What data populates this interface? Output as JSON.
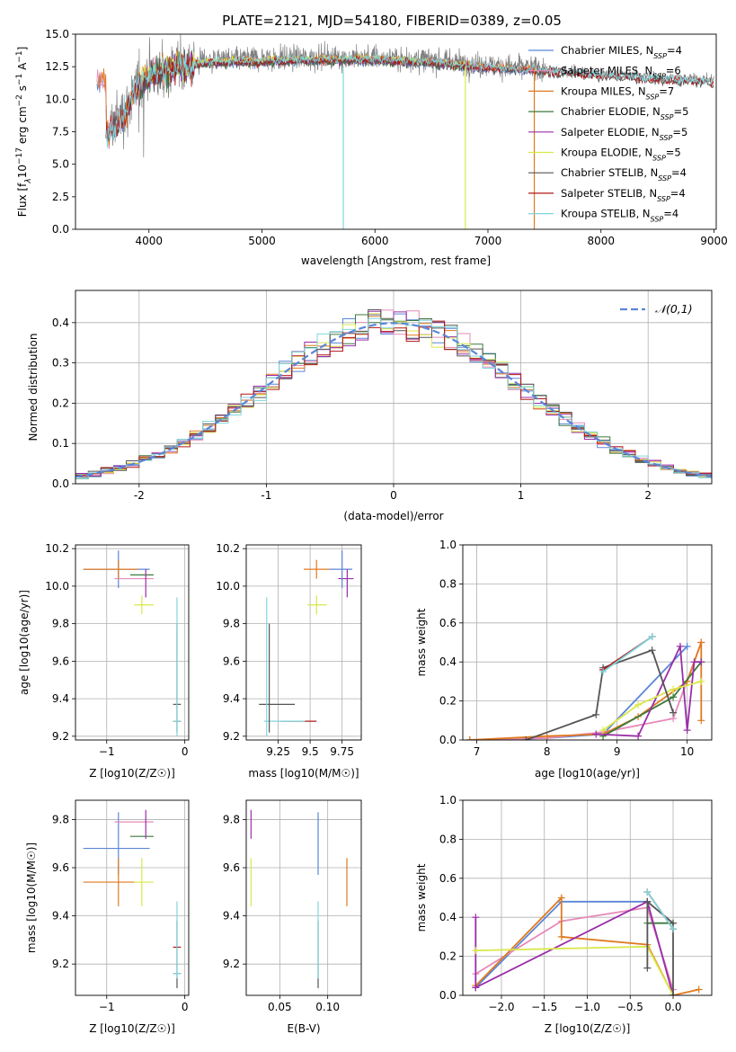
{
  "figure": {
    "title": "PLATE=2121, MJD=54180, FIBERID=0389, z=0.05"
  },
  "colors": {
    "Chabrier MILES": "#5b86d6",
    "Salpeter MILES": "#e68ab8",
    "Kroupa MILES": "#e07a20",
    "Chabrier ELODIE": "#3c7a3c",
    "Salpeter ELODIE": "#9a2ea8",
    "Kroupa ELODIE": "#d9e84a",
    "Chabrier STELIB": "#555555",
    "Salpeter STELIB": "#b01818",
    "Kroupa STELIB": "#7fd6dc"
  },
  "chart_data": [
    {
      "id": "spectrum",
      "type": "line",
      "xlabel": "wavelength [Angstrom, rest frame]",
      "ylabel_parts": [
        "Flux [f",
        "λ",
        "10",
        "−17",
        " erg cm",
        "−2",
        " s",
        "−1",
        " A",
        "−1",
        "]"
      ],
      "xlim": [
        3350,
        9020
      ],
      "ylim": [
        0,
        15
      ],
      "xticks": [
        4000,
        5000,
        6000,
        7000,
        8000,
        9000
      ],
      "yticks": [
        0.0,
        2.5,
        5.0,
        7.5,
        10.0,
        12.5,
        15.0
      ],
      "ytick_labels": [
        "0.0",
        "2.5",
        "5.0",
        "7.5",
        "10.0",
        "12.5",
        "15.0"
      ],
      "data_range": [
        3620,
        9000
      ],
      "data_flux_shape": [
        [
          3620,
          7.5
        ],
        [
          3700,
          8.2
        ],
        [
          3800,
          9.2
        ],
        [
          3900,
          11.2
        ],
        [
          4000,
          12.0
        ],
        [
          4200,
          12.5
        ],
        [
          4500,
          13.0
        ],
        [
          5000,
          13.1
        ],
        [
          5500,
          13.2
        ],
        [
          6000,
          13.2
        ],
        [
          6500,
          13.0
        ],
        [
          7000,
          12.6
        ],
        [
          7400,
          12.4
        ],
        [
          8000,
          12.0
        ],
        [
          8500,
          11.7
        ],
        [
          9000,
          11.5
        ]
      ],
      "legend": [
        {
          "imf": "Chabrier",
          "lib": "MILES",
          "n": "4"
        },
        {
          "imf": "Salpeter",
          "lib": "MILES",
          "n": "6"
        },
        {
          "imf": "Kroupa",
          "lib": "MILES",
          "n": "7"
        },
        {
          "imf": "Chabrier",
          "lib": "ELODIE",
          "n": "5"
        },
        {
          "imf": "Salpeter",
          "lib": "ELODIE",
          "n": "5"
        },
        {
          "imf": "Kroupa",
          "lib": "ELODIE",
          "n": "5"
        },
        {
          "imf": "Chabrier",
          "lib": "STELIB",
          "n": "4"
        },
        {
          "imf": "Salpeter",
          "lib": "STELIB",
          "n": "4"
        },
        {
          "imf": "Kroupa",
          "lib": "STELIB",
          "n": "4"
        }
      ],
      "legend_subscript": "SSP",
      "legend_placement": "upper-right",
      "model_ranges": {
        "MILES": [
          3540,
          7410
        ],
        "ELODIE": [
          3900,
          6800
        ],
        "STELIB": [
          3620,
          9000
        ]
      },
      "drops": [
        {
          "x": 5720,
          "series": "Kroupa STELIB"
        },
        {
          "x": 6800,
          "series": "Kroupa ELODIE"
        },
        {
          "x": 7410,
          "series": "Kroupa MILES"
        }
      ]
    },
    {
      "id": "residuals",
      "type": "histogram",
      "xlabel": "(data-model)/error",
      "ylabel": "Normed distribution",
      "xlim": [
        -2.5,
        2.5
      ],
      "ylim": [
        0,
        0.48
      ],
      "xticks": [
        -2,
        -1,
        0,
        1,
        2
      ],
      "yticks": [
        0.0,
        0.1,
        0.2,
        0.3,
        0.4
      ],
      "ytick_labels": [
        "0.0",
        "0.1",
        "0.2",
        "0.3",
        "0.4"
      ],
      "bin_width": 0.1,
      "legend": {
        "label": "𝒩(0,1)",
        "style": "dashed",
        "placement": "upper-right"
      },
      "grid": true
    },
    {
      "id": "age-vs-Z",
      "type": "errorbar",
      "xlabel": "Z [log10(Z/Z☉)]",
      "ylabel": "age  [log10(age/yr)]",
      "xlim": [
        -1.4,
        0.05
      ],
      "ylim": [
        9.18,
        10.22
      ],
      "xticks": [
        -1,
        0
      ],
      "xtick_labels": [
        "−1",
        "0"
      ],
      "yticks": [
        9.2,
        9.4,
        9.6,
        9.8,
        10.0,
        10.2
      ],
      "grid": true
    },
    {
      "id": "age-vs-mass",
      "type": "errorbar",
      "xlabel": "mass [log10(M/M☉)]",
      "xlim": [
        9.0,
        9.9
      ],
      "ylim": [
        9.18,
        10.22
      ],
      "xticks": [
        9.25,
        9.5,
        9.75
      ],
      "yticks": [
        9.2,
        9.4,
        9.6,
        9.8,
        10.0,
        10.2
      ],
      "grid": true
    },
    {
      "id": "weight-vs-age",
      "type": "line",
      "xlabel": "age  [log10(age/yr)]",
      "ylabel": "mass weight",
      "xlim": [
        6.8,
        10.35
      ],
      "ylim": [
        0,
        1.0
      ],
      "xticks": [
        7,
        8,
        9,
        10
      ],
      "yticks": [
        0.0,
        0.2,
        0.4,
        0.6,
        0.8,
        1.0
      ],
      "grid": true,
      "series": [
        {
          "name": "Chabrier MILES",
          "x": [
            6.9,
            8.0,
            8.8,
            10.0
          ],
          "y": [
            0.0,
            0.01,
            0.03,
            0.48
          ]
        },
        {
          "name": "Salpeter MILES",
          "x": [
            6.9,
            8.0,
            8.8,
            9.8,
            10.2
          ],
          "y": [
            0.0,
            0.01,
            0.04,
            0.11,
            0.5
          ]
        },
        {
          "name": "Kroupa MILES",
          "x": [
            6.9,
            8.0,
            8.8,
            9.3,
            10.0,
            10.2,
            10.2
          ],
          "y": [
            0.0,
            0.02,
            0.03,
            0.12,
            0.3,
            0.5,
            0.1
          ]
        },
        {
          "name": "Chabrier ELODIE",
          "x": [
            8.8,
            9.8,
            10.2
          ],
          "y": [
            0.02,
            0.22,
            0.4
          ]
        },
        {
          "name": "Salpeter ELODIE",
          "x": [
            8.7,
            9.3,
            9.9,
            10.0,
            10.1,
            10.2
          ],
          "y": [
            0.03,
            0.02,
            0.48,
            0.05,
            0.4,
            0.4
          ]
        },
        {
          "name": "Kroupa ELODIE",
          "x": [
            8.8,
            9.3,
            9.8,
            10.2
          ],
          "y": [
            0.05,
            0.18,
            0.26,
            0.3
          ]
        },
        {
          "name": "Chabrier STELIB",
          "x": [
            7.7,
            8.7,
            8.8,
            9.5,
            9.8
          ],
          "y": [
            0.0,
            0.13,
            0.37,
            0.46,
            0.14
          ]
        },
        {
          "name": "Salpeter STELIB",
          "x": [
            8.8,
            9.5
          ],
          "y": [
            0.36,
            0.53
          ]
        },
        {
          "name": "Kroupa STELIB",
          "x": [
            8.8,
            9.5
          ],
          "y": [
            0.35,
            0.53
          ]
        }
      ]
    },
    {
      "id": "mass-vs-Z",
      "type": "errorbar",
      "xlabel": "Z [log10(Z/Z☉)]",
      "ylabel": "mass [log10(M/M☉)]",
      "xlim": [
        -1.4,
        0.05
      ],
      "ylim": [
        9.07,
        9.88
      ],
      "xticks": [
        -1,
        0
      ],
      "xtick_labels": [
        "−1",
        "0"
      ],
      "yticks": [
        9.2,
        9.4,
        9.6,
        9.8
      ],
      "grid": true
    },
    {
      "id": "mass-vs-ebv",
      "type": "errorbar",
      "xlabel": "E(B-V)",
      "xlim": [
        0.015,
        0.135
      ],
      "ylim": [
        9.07,
        9.88
      ],
      "xticks": [
        0.05,
        0.1
      ],
      "xtick_labels": [
        "0.05",
        "0.10"
      ],
      "yticks": [
        9.2,
        9.4,
        9.6,
        9.8
      ],
      "grid": true
    },
    {
      "id": "weight-vs-Z",
      "type": "line",
      "xlabel": "Z [log10(Z/Z☉)]",
      "ylabel": "mass weight",
      "xlim": [
        -2.45,
        0.45
      ],
      "ylim": [
        0,
        1.0
      ],
      "xticks": [
        -2.0,
        -1.5,
        -1.0,
        -0.5,
        0.0
      ],
      "xtick_labels": [
        "−2.0",
        "−1.5",
        "−1.0",
        "−0.5",
        "0.0"
      ],
      "yticks": [
        0.0,
        0.2,
        0.4,
        0.6,
        0.8,
        1.0
      ],
      "grid": true,
      "series": [
        {
          "name": "Chabrier MILES",
          "x": [
            -2.3,
            -1.3,
            -0.3,
            0.0
          ],
          "y": [
            0.04,
            0.48,
            0.48,
            0.0
          ]
        },
        {
          "name": "Salpeter MILES",
          "x": [
            -2.3,
            -1.3,
            -0.3,
            0.0
          ],
          "y": [
            0.11,
            0.38,
            0.45,
            0.03
          ]
        },
        {
          "name": "Kroupa MILES",
          "x": [
            -2.3,
            -1.3,
            -1.3,
            -0.3,
            0.0,
            0.3
          ],
          "y": [
            0.05,
            0.5,
            0.3,
            0.26,
            0.0,
            0.03
          ]
        },
        {
          "name": "Chabrier ELODIE",
          "x": [
            -0.3,
            0.0
          ],
          "y": [
            0.37,
            0.37
          ]
        },
        {
          "name": "Salpeter ELODIE",
          "x": [
            -2.3,
            -2.3,
            -0.3,
            -0.3,
            0.0
          ],
          "y": [
            0.4,
            0.04,
            0.48,
            0.48,
            0.0
          ]
        },
        {
          "name": "Kroupa ELODIE",
          "x": [
            -2.3,
            -0.3,
            0.0
          ],
          "y": [
            0.23,
            0.25,
            0.0
          ]
        },
        {
          "name": "Chabrier STELIB",
          "x": [
            -0.3,
            -0.3,
            0.0,
            0.0
          ],
          "y": [
            0.14,
            0.48,
            0.37,
            0.0
          ]
        },
        {
          "name": "Salpeter STELIB",
          "x": [
            -0.3,
            0.0
          ],
          "y": [
            0.53,
            0.34
          ]
        },
        {
          "name": "Kroupa STELIB",
          "x": [
            -0.3,
            0.0
          ],
          "y": [
            0.53,
            0.34
          ]
        }
      ]
    }
  ],
  "errorbars": {
    "age_Z_mass": [
      {
        "name": "Chabrier MILES",
        "Z": -0.85,
        "Zlo": -1.3,
        "Zhi": -0.45,
        "age": 10.09,
        "agelo": 9.99,
        "agehi": 10.19,
        "mass": 9.68,
        "masslo": 9.57,
        "masshi": 9.83,
        "ebv": 0.09,
        "ebvlo": 0.09,
        "ebvhi": 0.09
      },
      {
        "name": "Salpeter MILES",
        "Z": -0.65,
        "Zlo": -0.9,
        "Zhi": -0.4,
        "age": 10.04,
        "agelo": 10.04,
        "agehi": 10.04,
        "mass": 9.79,
        "masslo": 9.79,
        "masshi": 9.79,
        "ebv": 0.13,
        "ebvlo": 0.13,
        "ebvhi": 0.13
      },
      {
        "name": "Kroupa MILES",
        "Z": -0.85,
        "Zlo": -1.3,
        "Zhi": -0.6,
        "age": 10.09,
        "agelo": 10.04,
        "agehi": 10.14,
        "mass": 9.54,
        "masslo": 9.44,
        "masshi": 9.64,
        "ebv": 0.12,
        "ebvlo": 0.12,
        "ebvhi": 0.12
      },
      {
        "name": "Chabrier ELODIE",
        "Z": -0.55,
        "Zlo": -0.7,
        "Zhi": -0.4,
        "age": 10.06,
        "agelo": 10.06,
        "agehi": 10.06,
        "mass": 9.73,
        "masslo": 9.73,
        "masshi": 9.73,
        "ebv": 0.09,
        "ebvlo": 0.09,
        "ebvhi": 0.09
      },
      {
        "name": "Salpeter ELODIE",
        "Z": -0.5,
        "Zlo": -0.5,
        "Zhi": -0.5,
        "age": 10.04,
        "agelo": 9.94,
        "agehi": 10.09,
        "mass": 9.79,
        "masslo": 9.72,
        "masshi": 9.84,
        "ebv": 0.02,
        "ebvlo": 0.02,
        "ebvhi": 0.02
      },
      {
        "name": "Kroupa ELODIE",
        "Z": -0.55,
        "Zlo": -0.65,
        "Zhi": -0.4,
        "age": 9.9,
        "agelo": 9.85,
        "agehi": 9.95,
        "mass": 9.54,
        "masslo": 9.44,
        "masshi": 9.64,
        "ebv": 0.02,
        "ebvlo": 0.02,
        "ebvhi": 0.02
      },
      {
        "name": "Chabrier STELIB",
        "Z": -0.1,
        "Zlo": -0.15,
        "Zhi": -0.05,
        "age": 9.37,
        "agelo": 9.22,
        "agehi": 9.8,
        "mass": 9.16,
        "masslo": 9.1,
        "masshi": 9.38,
        "ebv": 0.09,
        "ebvlo": 0.09,
        "ebvhi": 0.09
      },
      {
        "name": "Salpeter STELIB",
        "Z": -0.1,
        "Zlo": -0.15,
        "Zhi": -0.05,
        "age": 9.28,
        "agelo": 9.28,
        "agehi": 9.28,
        "mass": 9.27,
        "masslo": 9.27,
        "masshi": 9.27,
        "ebv": 0.09,
        "ebvlo": 0.09,
        "ebvhi": 0.09
      },
      {
        "name": "Kroupa STELIB",
        "Z": -0.1,
        "Zlo": -0.15,
        "Zhi": -0.05,
        "age": 9.28,
        "agelo": 9.2,
        "agehi": 9.94,
        "mass": 9.16,
        "masslo": 9.14,
        "masshi": 9.46,
        "ebv": 0.09,
        "ebvlo": 0.09,
        "ebvhi": 0.09
      }
    ],
    "age_mass": [
      {
        "name": "Chabrier MILES",
        "m": 9.75,
        "mlo": 9.65,
        "mhi": 9.83,
        "age": 10.09
      },
      {
        "name": "Salpeter MILES",
        "m": 9.75,
        "mlo": 9.75,
        "mhi": 9.75,
        "age": 10.04
      },
      {
        "name": "Kroupa MILES",
        "m": 9.55,
        "mlo": 9.45,
        "mhi": 9.65,
        "age": 10.09
      },
      {
        "name": "Chabrier ELODIE",
        "m": 9.72,
        "mlo": 9.72,
        "mhi": 9.72,
        "age": 10.06
      },
      {
        "name": "Salpeter ELODIE",
        "m": 9.79,
        "mlo": 9.72,
        "mhi": 9.84,
        "age": 10.04
      },
      {
        "name": "Kroupa ELODIE",
        "m": 9.55,
        "mlo": 9.48,
        "mhi": 9.63,
        "age": 9.9
      },
      {
        "name": "Chabrier STELIB",
        "m": 9.18,
        "mlo": 9.1,
        "mhi": 9.38,
        "age": 9.37
      },
      {
        "name": "Salpeter STELIB",
        "m": 9.27,
        "mlo": 9.27,
        "mhi": 9.55,
        "age": 9.28
      },
      {
        "name": "Kroupa STELIB",
        "m": 9.16,
        "mlo": 9.14,
        "mhi": 9.46,
        "age": 9.28
      }
    ]
  }
}
